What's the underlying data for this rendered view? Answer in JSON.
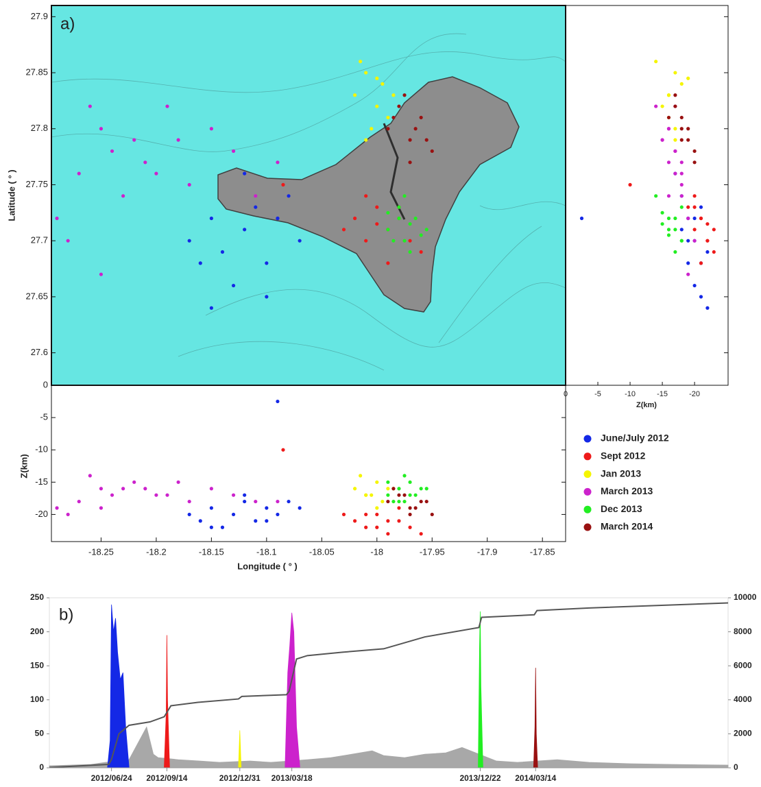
{
  "chart_data": [
    {
      "type": "hypocenters",
      "panel_label": "a)",
      "xlabel": "Longitude ( ° )",
      "ylabel": "Latitude ( ° )",
      "zlabel": "Z(km)",
      "xlim": [
        -18.295,
        -17.829
      ],
      "xticks": [
        -18.25,
        -18.2,
        -18.15,
        -18.1,
        -18.05,
        -18,
        -17.95,
        -17.9,
        -17.85
      ],
      "ylim": [
        27.571,
        27.91
      ],
      "yticks": [
        27.6,
        27.65,
        27.7,
        27.75,
        27.8,
        27.85,
        27.9
      ],
      "zlim": [
        0,
        -24.2
      ],
      "zlim_side": [
        0,
        -25.2
      ],
      "zticks": [
        0,
        -5,
        -10,
        -15,
        -20
      ],
      "series": [
        {
          "name": "June/July 2012",
          "color": "#1428e6",
          "lon": [
            -18.17,
            -18.16,
            -18.15,
            -18.14,
            -18.13,
            -18.12,
            -18.11,
            -18.1,
            -18.09,
            -18.08,
            -18.07,
            -18.15,
            -18.12,
            -18.1,
            -18.09
          ],
          "lat": [
            27.7,
            27.68,
            27.72,
            27.69,
            27.66,
            27.71,
            27.73,
            27.68,
            27.72,
            27.74,
            27.7,
            27.64,
            27.76,
            27.65,
            27.72
          ],
          "depth": [
            -20,
            -21,
            -19,
            -22,
            -20,
            -18,
            -21,
            -19,
            -20,
            -18,
            -19,
            -22,
            -17,
            -21,
            -2.5
          ]
        },
        {
          "name": "Sept 2012",
          "color": "#ee1a1a",
          "lon": [
            -18.02,
            -18.01,
            -18.0,
            -17.99,
            -17.98,
            -17.97,
            -18.01,
            -17.99,
            -18.0,
            -17.98,
            -18.03,
            -17.96,
            -18.085
          ],
          "lat": [
            27.72,
            27.7,
            27.73,
            27.71,
            27.72,
            27.7,
            27.74,
            27.68,
            27.715,
            27.73,
            27.71,
            27.69,
            27.75
          ],
          "depth": [
            -21,
            -22,
            -20,
            -23,
            -21,
            -22,
            -20,
            -21,
            -22,
            -19,
            -20,
            -23,
            -10
          ]
        },
        {
          "name": "Jan 2013",
          "color": "#f5f500",
          "lon": [
            -18.02,
            -18.01,
            -18.0,
            -17.995,
            -17.99,
            -18.005,
            -18.015,
            -17.985,
            -18.0,
            -18.01
          ],
          "lat": [
            27.83,
            27.85,
            27.82,
            27.84,
            27.81,
            27.8,
            27.86,
            27.83,
            27.845,
            27.79
          ],
          "depth": [
            -16,
            -17,
            -15,
            -18,
            -16,
            -17,
            -14,
            -16,
            -19,
            -17
          ]
        },
        {
          "name": "March 2013",
          "color": "#cc22cc",
          "lon": [
            -18.29,
            -18.27,
            -18.25,
            -18.24,
            -18.22,
            -18.21,
            -18.19,
            -18.17,
            -18.15,
            -18.13,
            -18.11,
            -18.28,
            -18.26,
            -18.23,
            -18.2,
            -18.18,
            -18.09,
            -18.25
          ],
          "lat": [
            27.72,
            27.76,
            27.8,
            27.78,
            27.79,
            27.77,
            27.82,
            27.75,
            27.8,
            27.78,
            27.74,
            27.7,
            27.82,
            27.74,
            27.76,
            27.79,
            27.77,
            27.67
          ],
          "depth": [
            -19,
            -18,
            -16,
            -17,
            -15,
            -16,
            -17,
            -18,
            -16,
            -17,
            -18,
            -20,
            -14,
            -16,
            -17,
            -15,
            -18,
            -19
          ]
        },
        {
          "name": "Dec 2013",
          "color": "#22ee22",
          "lon": [
            -17.99,
            -17.98,
            -17.975,
            -17.97,
            -17.965,
            -17.96,
            -17.98,
            -17.97,
            -17.99,
            -17.955,
            -17.975,
            -17.985
          ],
          "lat": [
            27.71,
            27.72,
            27.7,
            27.715,
            27.72,
            27.705,
            27.73,
            27.69,
            27.725,
            27.71,
            27.74,
            27.7
          ],
          "depth": [
            -17,
            -16,
            -18,
            -15,
            -17,
            -16,
            -18,
            -17,
            -15,
            -16,
            -14,
            -18
          ]
        },
        {
          "name": "March 2014",
          "color": "#991111",
          "lon": [
            -17.99,
            -17.98,
            -17.97,
            -17.96,
            -17.95,
            -17.975,
            -17.965,
            -17.955,
            -17.985,
            -17.97
          ],
          "lat": [
            27.8,
            27.82,
            27.79,
            27.81,
            27.78,
            27.83,
            27.8,
            27.79,
            27.81,
            27.77
          ],
          "depth": [
            -18,
            -17,
            -19,
            -18,
            -20,
            -17,
            -19,
            -18,
            -16,
            -20
          ]
        }
      ]
    },
    {
      "type": "timeseries",
      "panel_label": "b)",
      "xlim": [
        "2012/03/24",
        "2014/12/24"
      ],
      "xticks": [
        "2012/06/24",
        "2012/09/14",
        "2012/12/31",
        "2013/03/18",
        "2013/12/22",
        "2014/03/14"
      ],
      "ylim": [
        0,
        250
      ],
      "yticks": [
        0,
        50,
        100,
        150,
        200,
        250
      ],
      "y2lim": [
        0,
        10000
      ],
      "y2ticks": [
        0,
        2000,
        4000,
        6000,
        8000,
        10000
      ],
      "series": [
        {
          "type": "area",
          "color": "#a8a8a8",
          "x": [
            "2012/03/24",
            "2012/04/25",
            "2012/05/25",
            "2012/06/15",
            "2012/07/20",
            "2012/08/15",
            "2012/08/25",
            "2012/09/01",
            "2012/10/01",
            "2012/11/01",
            "2012/12/01",
            "2013/01/15",
            "2013/02/15",
            "2013/04/10",
            "2013/05/15",
            "2013/06/15",
            "2013/07/15",
            "2013/08/01",
            "2013/09/01",
            "2013/10/01",
            "2013/11/01",
            "2013/11/25",
            "2014/01/15",
            "2014/02/15",
            "2014/04/15",
            "2014/06/01",
            "2014/08/01",
            "2014/10/01",
            "2014/12/24"
          ],
          "values": [
            3,
            4,
            5,
            8,
            12,
            60,
            20,
            15,
            12,
            10,
            8,
            10,
            8,
            12,
            15,
            20,
            25,
            18,
            15,
            20,
            22,
            30,
            10,
            8,
            12,
            8,
            6,
            5,
            4
          ]
        },
        {
          "type": "area",
          "color": "#1428e6",
          "x": [
            "2012/06/18",
            "2012/06/22",
            "2012/06/24",
            "2012/06/27",
            "2012/06/30",
            "2012/07/03",
            "2012/07/07",
            "2012/07/11",
            "2012/07/15",
            "2012/07/20"
          ],
          "values": [
            0,
            40,
            240,
            200,
            220,
            170,
            130,
            140,
            60,
            0
          ]
        },
        {
          "type": "area",
          "color": "#ee1a1a",
          "x": [
            "2012/09/10",
            "2012/09/13",
            "2012/09/14",
            "2012/09/15",
            "2012/09/18"
          ],
          "values": [
            0,
            80,
            195,
            100,
            0
          ]
        },
        {
          "type": "area",
          "color": "#f5f500",
          "x": [
            "2012/12/29",
            "2012/12/31",
            "2013/01/02"
          ],
          "values": [
            0,
            55,
            0
          ]
        },
        {
          "type": "area",
          "color": "#cc22cc",
          "x": [
            "2013/03/08",
            "2013/03/12",
            "2013/03/15",
            "2013/03/18",
            "2013/03/21",
            "2013/03/25",
            "2013/03/30"
          ],
          "values": [
            0,
            140,
            180,
            228,
            200,
            60,
            0
          ]
        },
        {
          "type": "area",
          "color": "#22ee22",
          "x": [
            "2013/12/19",
            "2013/12/21",
            "2013/12/22",
            "2013/12/23",
            "2013/12/26"
          ],
          "values": [
            0,
            180,
            230,
            120,
            0
          ]
        },
        {
          "type": "area",
          "color": "#991111",
          "x": [
            "2014/03/11",
            "2014/03/13",
            "2014/03/14",
            "2014/03/15",
            "2014/03/17"
          ],
          "values": [
            0,
            60,
            147,
            50,
            0
          ]
        },
        {
          "type": "line",
          "axis": "y2",
          "color": "#555555",
          "x": [
            "2012/03/24",
            "2012/06/20",
            "2012/06/24",
            "2012/07/05",
            "2012/07/20",
            "2012/08/20",
            "2012/09/10",
            "2012/09/20",
            "2012/10/30",
            "2012/12/29",
            "2013/01/03",
            "2013/03/10",
            "2013/03/14",
            "2013/03/25",
            "2013/04/10",
            "2013/06/01",
            "2013/08/01",
            "2013/10/01",
            "2013/12/20",
            "2013/12/24",
            "2014/03/12",
            "2014/03/16",
            "2014/06/01",
            "2014/12/24"
          ],
          "values": [
            20,
            200,
            500,
            2000,
            2500,
            2700,
            3000,
            3650,
            3850,
            4050,
            4200,
            4300,
            4500,
            6400,
            6600,
            6800,
            7000,
            7700,
            8250,
            8850,
            9000,
            9250,
            9400,
            9700
          ]
        }
      ]
    }
  ]
}
